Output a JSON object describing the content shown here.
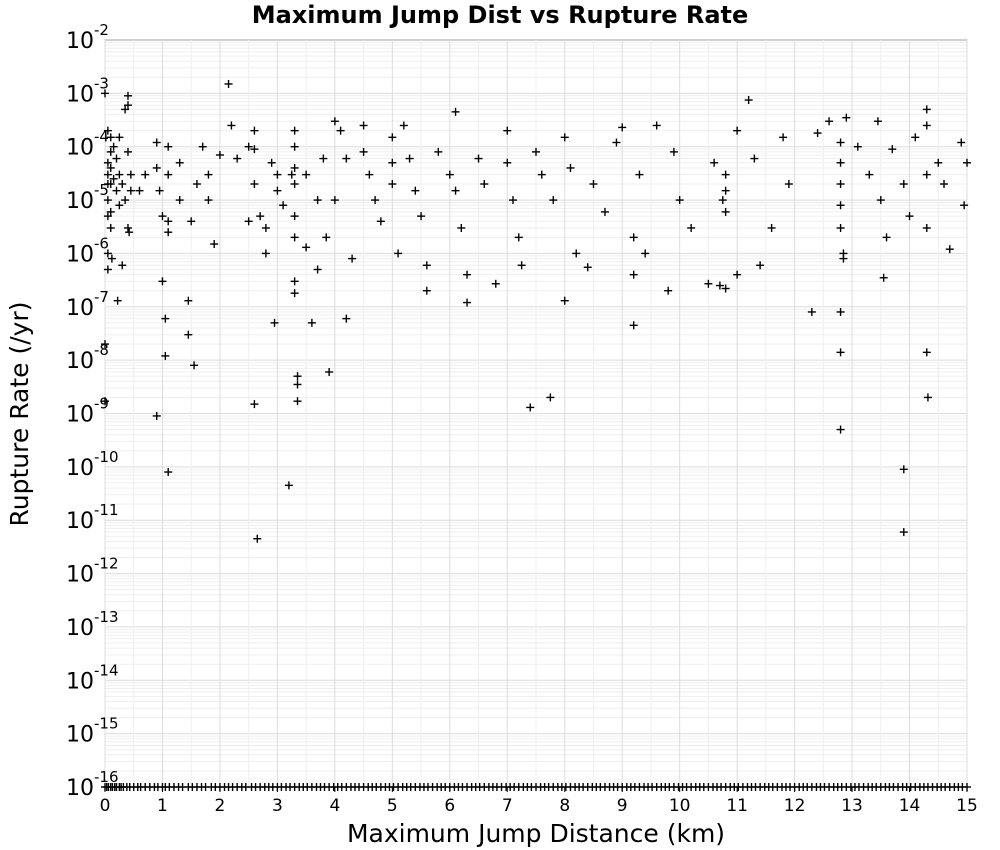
{
  "chart_data": {
    "type": "scatter",
    "title": "Maximum Jump Dist vs Rupture Rate",
    "xlabel": "Maximum Jump Distance (km)",
    "ylabel": "Rupture Rate (/yr)",
    "xlim": [
      0,
      15
    ],
    "ylim_log10": [
      -16,
      -2
    ],
    "yscale": "log",
    "grid": true,
    "marker": "+",
    "marker_color": "#000000",
    "x_ticks": [
      "0",
      "1",
      "2",
      "3",
      "4",
      "5",
      "6",
      "7",
      "8",
      "9",
      "10",
      "11",
      "12",
      "13",
      "14",
      "15"
    ],
    "y_ticks": [
      {
        "base": "10",
        "exp": "-2"
      },
      {
        "base": "10",
        "exp": "-3"
      },
      {
        "base": "10",
        "exp": "-4"
      },
      {
        "base": "10",
        "exp": "-5"
      },
      {
        "base": "10",
        "exp": "-6"
      },
      {
        "base": "10",
        "exp": "-7"
      },
      {
        "base": "10",
        "exp": "-8"
      },
      {
        "base": "10",
        "exp": "-9"
      },
      {
        "base": "10",
        "exp": "-10"
      },
      {
        "base": "10",
        "exp": "-11"
      },
      {
        "base": "10",
        "exp": "-12"
      },
      {
        "base": "10",
        "exp": "-13"
      },
      {
        "base": "10",
        "exp": "-14"
      },
      {
        "base": "10",
        "exp": "-15"
      },
      {
        "base": "10",
        "exp": "-16"
      }
    ],
    "points": [
      [
        0.0,
        0.001
      ],
      [
        0.0,
        2e-08
      ],
      [
        0.0,
        1.7e-09
      ],
      [
        0.05,
        0.0002
      ],
      [
        0.05,
        5e-05
      ],
      [
        0.05,
        3e-05
      ],
      [
        0.05,
        2e-05
      ],
      [
        0.05,
        1e-05
      ],
      [
        0.05,
        5e-06
      ],
      [
        0.05,
        1e-06
      ],
      [
        0.05,
        5e-07
      ],
      [
        0.1,
        0.00015
      ],
      [
        0.1,
        8e-05
      ],
      [
        0.1,
        4e-05
      ],
      [
        0.1,
        2e-05
      ],
      [
        0.1,
        6e-06
      ],
      [
        0.1,
        3e-06
      ],
      [
        0.12,
        8e-07
      ],
      [
        0.15,
        0.0001
      ],
      [
        0.15,
        2.5e-05
      ],
      [
        0.2,
        6e-05
      ],
      [
        0.2,
        1.5e-05
      ],
      [
        0.22,
        1.3e-07
      ],
      [
        0.25,
        0.00015
      ],
      [
        0.25,
        3e-05
      ],
      [
        0.25,
        8e-06
      ],
      [
        0.3,
        6e-07
      ],
      [
        0.3,
        2e-05
      ],
      [
        0.35,
        0.0005
      ],
      [
        0.35,
        1e-05
      ],
      [
        0.4,
        0.0009
      ],
      [
        0.4,
        0.0006
      ],
      [
        0.4,
        8e-05
      ],
      [
        0.4,
        3e-06
      ],
      [
        0.42,
        2.5e-06
      ],
      [
        0.45,
        3e-05
      ],
      [
        0.45,
        1.5e-05
      ],
      [
        0.6,
        1.5e-05
      ],
      [
        0.7,
        3e-05
      ],
      [
        0.9,
        9e-10
      ],
      [
        0.9,
        0.00012
      ],
      [
        0.9,
        4e-05
      ],
      [
        0.95,
        1.5e-05
      ],
      [
        1.0,
        3e-07
      ],
      [
        1.0,
        5e-06
      ],
      [
        1.05,
        6e-08
      ],
      [
        1.05,
        1.2e-08
      ],
      [
        1.1,
        8e-11
      ],
      [
        1.1,
        0.0001
      ],
      [
        1.1,
        3e-05
      ],
      [
        1.1,
        4e-06
      ],
      [
        1.1,
        2.5e-06
      ],
      [
        1.3,
        5e-05
      ],
      [
        1.3,
        1e-05
      ],
      [
        1.45,
        1.3e-07
      ],
      [
        1.45,
        3e-08
      ],
      [
        1.5,
        4e-06
      ],
      [
        1.55,
        8e-09
      ],
      [
        1.6,
        2e-05
      ],
      [
        1.7,
        0.0001
      ],
      [
        1.8,
        1e-05
      ],
      [
        1.8,
        3e-05
      ],
      [
        1.9,
        1.5e-06
      ],
      [
        2.0,
        7e-05
      ],
      [
        2.15,
        0.0015
      ],
      [
        2.2,
        0.00025
      ],
      [
        2.3,
        6e-05
      ],
      [
        2.5,
        0.0001
      ],
      [
        2.5,
        4e-06
      ],
      [
        2.6,
        0.0002
      ],
      [
        2.6,
        9e-05
      ],
      [
        2.6,
        1.5e-09
      ],
      [
        2.65,
        4.5e-12
      ],
      [
        2.6,
        2e-05
      ],
      [
        2.7,
        5e-06
      ],
      [
        2.8,
        3e-06
      ],
      [
        2.8,
        1e-06
      ],
      [
        2.9,
        5e-05
      ],
      [
        2.95,
        5e-08
      ],
      [
        3.0,
        3e-05
      ],
      [
        3.0,
        1.5e-05
      ],
      [
        3.1,
        8e-06
      ],
      [
        3.2,
        4.5e-11
      ],
      [
        3.25,
        3e-05
      ],
      [
        3.3,
        0.0002
      ],
      [
        3.3,
        0.0001
      ],
      [
        3.3,
        4e-05
      ],
      [
        3.3,
        2e-05
      ],
      [
        3.3,
        5e-06
      ],
      [
        3.3,
        2e-06
      ],
      [
        3.3,
        3e-07
      ],
      [
        3.3,
        1.8e-07
      ],
      [
        3.35,
        5e-09
      ],
      [
        3.35,
        3.5e-09
      ],
      [
        3.35,
        1.7e-09
      ],
      [
        3.5,
        3e-05
      ],
      [
        3.5,
        1.3e-06
      ],
      [
        3.6,
        5e-08
      ],
      [
        3.7,
        5e-07
      ],
      [
        3.7,
        1e-05
      ],
      [
        3.8,
        6e-05
      ],
      [
        3.85,
        2e-06
      ],
      [
        3.9,
        6e-09
      ],
      [
        4.0,
        1e-05
      ],
      [
        4.0,
        0.0003
      ],
      [
        4.1,
        0.0002
      ],
      [
        4.2,
        6e-08
      ],
      [
        4.2,
        6e-05
      ],
      [
        4.3,
        8e-07
      ],
      [
        4.5,
        0.00025
      ],
      [
        4.5,
        8e-05
      ],
      [
        4.6,
        3e-05
      ],
      [
        4.7,
        1e-05
      ],
      [
        4.8,
        4e-06
      ],
      [
        5.0,
        0.00015
      ],
      [
        5.0,
        5e-05
      ],
      [
        5.0,
        2e-05
      ],
      [
        5.1,
        1e-06
      ],
      [
        5.2,
        0.00025
      ],
      [
        5.3,
        6e-05
      ],
      [
        5.4,
        1.5e-05
      ],
      [
        5.5,
        5e-06
      ],
      [
        5.6,
        2e-07
      ],
      [
        5.6,
        6e-07
      ],
      [
        5.8,
        8e-05
      ],
      [
        6.0,
        3e-05
      ],
      [
        6.1,
        0.00045
      ],
      [
        6.1,
        1.5e-05
      ],
      [
        6.2,
        3e-06
      ],
      [
        6.3,
        1.2e-07
      ],
      [
        6.3,
        4e-07
      ],
      [
        6.5,
        6e-05
      ],
      [
        6.6,
        2e-05
      ],
      [
        6.8,
        2.7e-07
      ],
      [
        7.0,
        0.0002
      ],
      [
        7.0,
        5e-05
      ],
      [
        7.1,
        1e-05
      ],
      [
        7.2,
        2e-06
      ],
      [
        7.25,
        6e-07
      ],
      [
        7.4,
        1.3e-09
      ],
      [
        7.5,
        8e-05
      ],
      [
        7.6,
        3e-05
      ],
      [
        7.75,
        2e-09
      ],
      [
        7.8,
        1e-05
      ],
      [
        8.0,
        1.3e-07
      ],
      [
        8.0,
        0.00015
      ],
      [
        8.1,
        4e-05
      ],
      [
        8.2,
        1e-06
      ],
      [
        8.4,
        5.5e-07
      ],
      [
        8.5,
        2e-05
      ],
      [
        8.7,
        6e-06
      ],
      [
        8.9,
        0.00012
      ],
      [
        9.0,
        0.00023
      ],
      [
        9.2,
        4.5e-08
      ],
      [
        9.2,
        2e-06
      ],
      [
        9.2,
        4e-07
      ],
      [
        9.3,
        3e-05
      ],
      [
        9.4,
        1e-06
      ],
      [
        9.6,
        0.00025
      ],
      [
        9.8,
        2e-07
      ],
      [
        9.9,
        8e-05
      ],
      [
        10.0,
        1e-05
      ],
      [
        10.2,
        3e-06
      ],
      [
        10.5,
        2.7e-07
      ],
      [
        10.6,
        5e-05
      ],
      [
        10.7,
        2.5e-07
      ],
      [
        10.75,
        1e-05
      ],
      [
        10.8,
        3e-05
      ],
      [
        10.8,
        1.5e-05
      ],
      [
        10.8,
        6e-06
      ],
      [
        10.8,
        2.2e-07
      ],
      [
        11.0,
        0.0002
      ],
      [
        11.0,
        4e-07
      ],
      [
        11.2,
        0.00075
      ],
      [
        11.3,
        6e-05
      ],
      [
        11.4,
        6e-07
      ],
      [
        11.6,
        3e-06
      ],
      [
        11.8,
        0.00015
      ],
      [
        11.9,
        2e-05
      ],
      [
        12.3,
        8e-08
      ],
      [
        12.4,
        0.00018
      ],
      [
        12.6,
        0.0003
      ],
      [
        12.8,
        0.00012
      ],
      [
        12.8,
        5e-05
      ],
      [
        12.8,
        2e-05
      ],
      [
        12.8,
        8e-06
      ],
      [
        12.8,
        3e-06
      ],
      [
        12.8,
        8e-08
      ],
      [
        12.8,
        1.4e-08
      ],
      [
        12.8,
        5e-10
      ],
      [
        12.85,
        1e-06
      ],
      [
        12.85,
        8e-07
      ],
      [
        12.9,
        0.00035
      ],
      [
        13.1,
        0.0001
      ],
      [
        13.3,
        3e-05
      ],
      [
        13.45,
        0.0003
      ],
      [
        13.5,
        1e-05
      ],
      [
        13.55,
        3.5e-07
      ],
      [
        13.6,
        2e-06
      ],
      [
        13.7,
        9e-05
      ],
      [
        13.9,
        9e-11
      ],
      [
        13.9,
        6e-12
      ],
      [
        13.9,
        2e-05
      ],
      [
        14.0,
        5e-06
      ],
      [
        14.1,
        0.00015
      ],
      [
        14.3,
        0.0005
      ],
      [
        14.3,
        0.00025
      ],
      [
        14.3,
        3e-05
      ],
      [
        14.3,
        1.4e-08
      ],
      [
        14.32,
        2e-09
      ],
      [
        14.3,
        3e-06
      ],
      [
        14.5,
        5e-05
      ],
      [
        14.6,
        2e-05
      ],
      [
        14.7,
        1.2e-06
      ],
      [
        14.9,
        0.00012
      ],
      [
        14.95,
        8e-06
      ],
      [
        15.0,
        5e-05
      ]
    ],
    "floor_rate": 1e-16,
    "floor_x": [
      0.0,
      0.03,
      0.06,
      0.1,
      0.13,
      0.17,
      0.2,
      0.25,
      0.28,
      0.32,
      0.38,
      0.43,
      0.5,
      0.57,
      0.62,
      0.7,
      0.78,
      0.86,
      0.92,
      1.0,
      1.05,
      1.12,
      1.2,
      1.28,
      1.35,
      1.45,
      1.52,
      1.6,
      1.68,
      1.75,
      1.85,
      1.92,
      2.0,
      2.08,
      2.15,
      2.22,
      2.3,
      2.38,
      2.45,
      2.55,
      2.62,
      2.7,
      2.78,
      2.85,
      2.92,
      3.0,
      3.07,
      3.15,
      3.22,
      3.3,
      3.38,
      3.45,
      3.52,
      3.6,
      3.68,
      3.75,
      3.82,
      3.9,
      3.98,
      4.05,
      4.12,
      4.2,
      4.28,
      4.35,
      4.42,
      4.5,
      4.58,
      4.65,
      4.72,
      4.8,
      4.88,
      4.95,
      5.02,
      5.1,
      5.18,
      5.25,
      5.32,
      5.4,
      5.48,
      5.55,
      5.62,
      5.7,
      5.78,
      5.85,
      5.92,
      6.0,
      6.08,
      6.15,
      6.22,
      6.3,
      6.38,
      6.45,
      6.52,
      6.6,
      6.68,
      6.75,
      6.82,
      6.9,
      6.98,
      7.05,
      7.12,
      7.2,
      7.28,
      7.35,
      7.42,
      7.5,
      7.58,
      7.65,
      7.72,
      7.8,
      7.88,
      7.95,
      8.02,
      8.1,
      8.18,
      8.25,
      8.32,
      8.4,
      8.48,
      8.55,
      8.62,
      8.7,
      8.78,
      8.85,
      8.92,
      9.0,
      9.08,
      9.15,
      9.22,
      9.3,
      9.38,
      9.45,
      9.52,
      9.6,
      9.68,
      9.75,
      9.82,
      9.9,
      9.98,
      10.05,
      10.12,
      10.2,
      10.28,
      10.35,
      10.42,
      10.5,
      10.58,
      10.65,
      10.72,
      10.8,
      10.88,
      10.95,
      11.02,
      11.1,
      11.18,
      11.25,
      11.32,
      11.4,
      11.48,
      11.55,
      11.62,
      11.7,
      11.78,
      11.85,
      11.92,
      12.0,
      12.08,
      12.15,
      12.22,
      12.3,
      12.38,
      12.45,
      12.52,
      12.6,
      12.68,
      12.75,
      12.82,
      12.9,
      12.98,
      13.05,
      13.12,
      13.2,
      13.28,
      13.35,
      13.42,
      13.5,
      13.58,
      13.65,
      13.72,
      13.8,
      13.88,
      13.95,
      14.02,
      14.1,
      14.18,
      14.25,
      14.32,
      14.4,
      14.48,
      14.55,
      14.62,
      14.7,
      14.78,
      14.85,
      14.92,
      15.0
    ]
  }
}
